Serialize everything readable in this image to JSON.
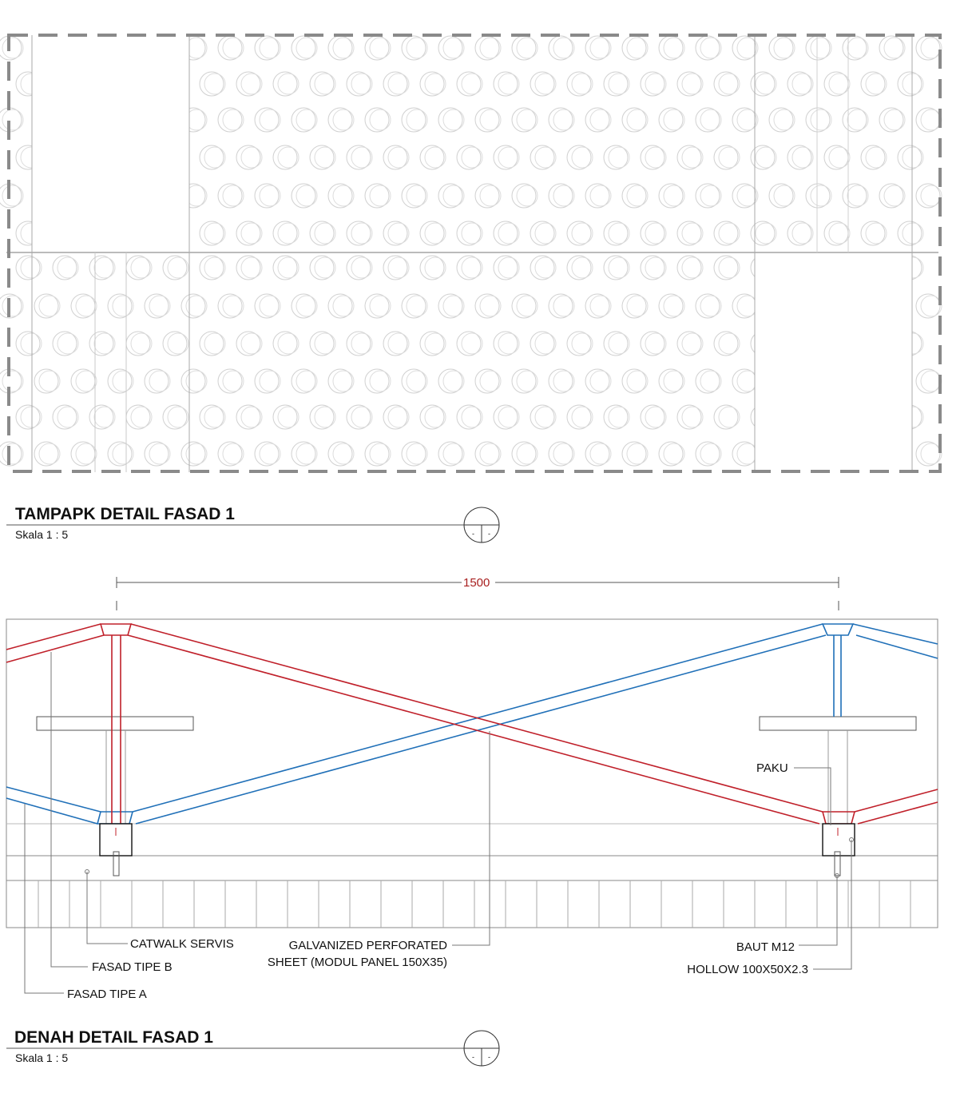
{
  "elevation": {
    "title": "TAMPAPK DETAIL FASAD 1",
    "scale": "Skala 1 : 5",
    "marker_top": "-",
    "marker_bottom": "-"
  },
  "plan": {
    "title": "DENAH DETAIL FASAD 1",
    "scale": "Skala 1 : 5",
    "marker_top": "-",
    "marker_bottom": "-",
    "dimension": "1500",
    "labels": {
      "catwalk": "CATWALK SERVIS",
      "fasad_b": "FASAD TIPE B",
      "fasad_a": "FASAD TIPE A",
      "sheet_line1": "GALVANIZED PERFORATED",
      "sheet_line2": "SHEET (MODUL PANEL 150X35)",
      "paku": "PAKU",
      "baut": "BAUT M12",
      "hollow": "HOLLOW 100X50X2.3"
    }
  },
  "colors": {
    "fasad_a": "#c0202a",
    "fasad_b": "#2070b8",
    "dashed_border": "#8a8a8a",
    "linework": "#9a9a9a"
  }
}
